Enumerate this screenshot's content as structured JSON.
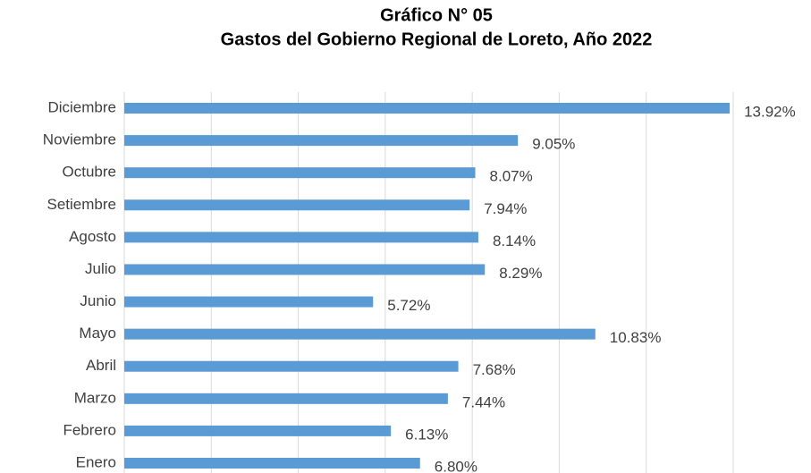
{
  "chart_data": {
    "type": "bar",
    "orientation": "horizontal",
    "title": "Gráfico N° 05",
    "subtitle": "Gastos del Gobierno Regional de Loreto, Año 2022",
    "categories": [
      "Enero",
      "Febrero",
      "Marzo",
      "Abril",
      "Mayo",
      "Junio",
      "Julio",
      "Agosto",
      "Setiembre",
      "Octubre",
      "Noviembre",
      "Diciembre"
    ],
    "values": [
      6.8,
      6.13,
      7.44,
      7.68,
      10.83,
      5.72,
      8.29,
      8.14,
      7.94,
      8.07,
      9.05,
      13.92
    ],
    "value_labels": [
      "6.80%",
      "6.13%",
      "7.44%",
      "7.68%",
      "10.83%",
      "5.72%",
      "8.29%",
      "8.14%",
      "7.94%",
      "8.07%",
      "9.05%",
      "13.92%"
    ],
    "color": "#5b9bd5",
    "xlim": [
      0,
      14
    ],
    "xticks": [
      0,
      2,
      4,
      6,
      8,
      10,
      12,
      14
    ],
    "grid": true
  }
}
